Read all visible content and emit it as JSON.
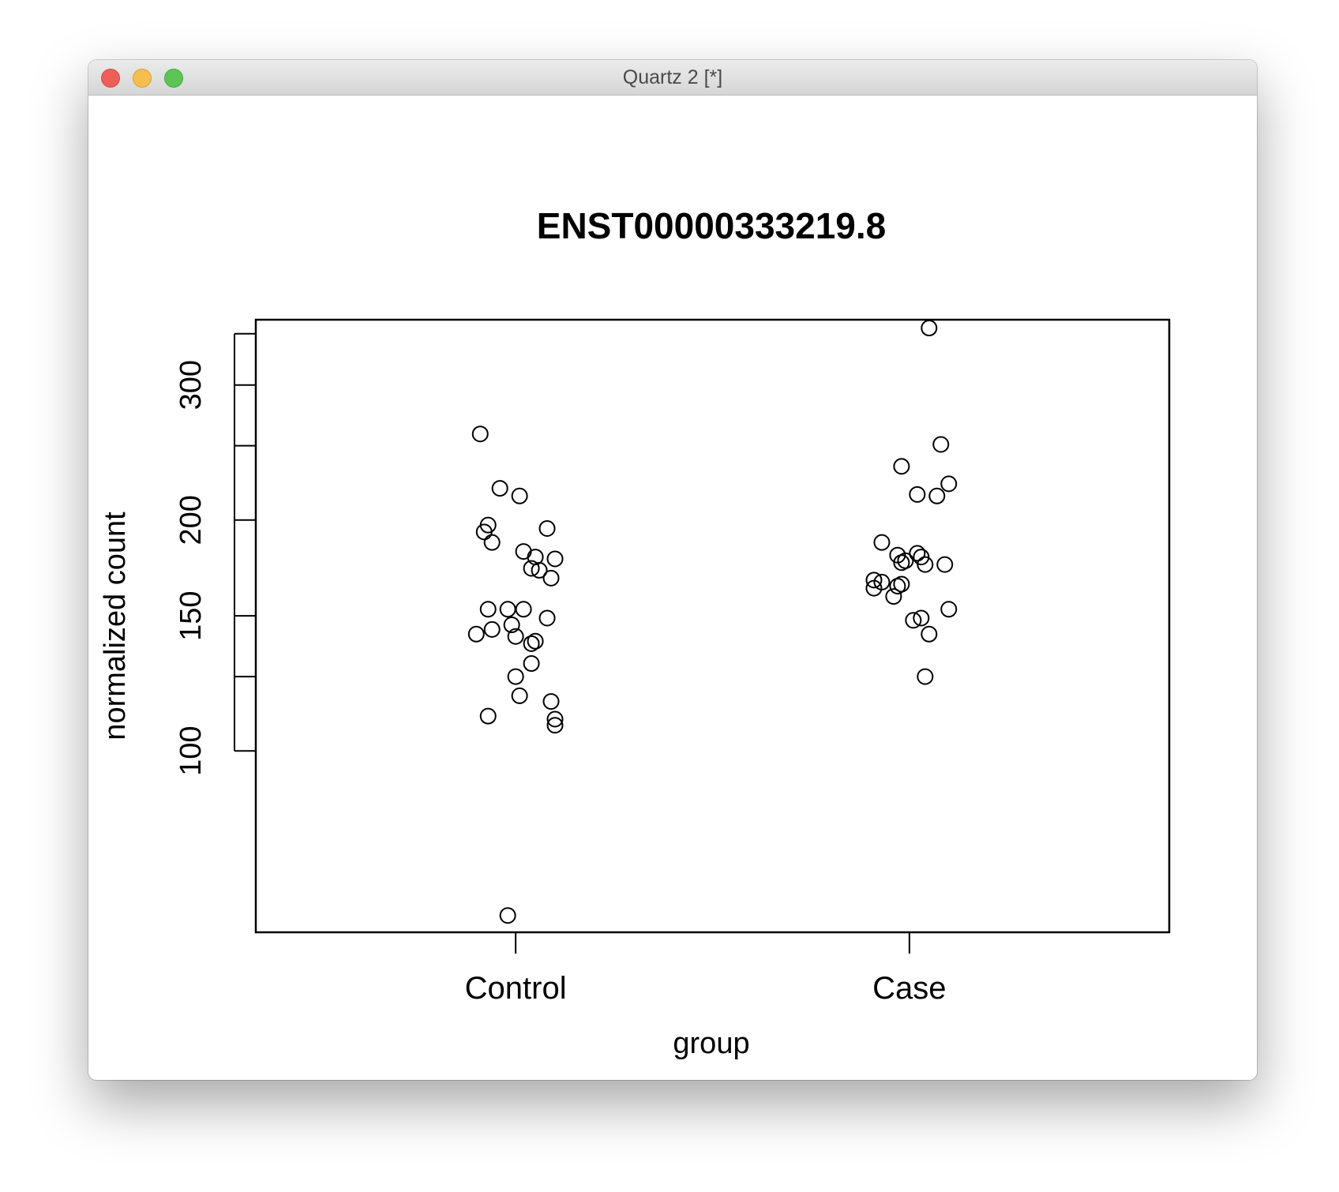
{
  "window": {
    "title": "Quartz 2 [*]",
    "controls": [
      "close",
      "minimize",
      "zoom"
    ]
  },
  "chart_data": {
    "type": "scatter",
    "title": "ENST00000333219.8",
    "xlabel": "group",
    "ylabel": "normalized count",
    "categories": [
      "Control",
      "Case"
    ],
    "y_scale": "log",
    "ylim": [
      58,
      365
    ],
    "yticks": [
      {
        "value": 100,
        "label": "100"
      },
      {
        "value": 125,
        "label": ""
      },
      {
        "value": 150,
        "label": "150"
      },
      {
        "value": 200,
        "label": "200"
      },
      {
        "value": 250,
        "label": ""
      },
      {
        "value": 300,
        "label": "300"
      },
      {
        "value": 350,
        "label": ""
      }
    ],
    "grid": false,
    "legend": "none",
    "series": [
      {
        "category": "Control",
        "points": [
          {
            "jitter": -0.09,
            "y": 259
          },
          {
            "jitter": -0.04,
            "y": 220
          },
          {
            "jitter": 0.01,
            "y": 215
          },
          {
            "jitter": -0.07,
            "y": 197
          },
          {
            "jitter": -0.08,
            "y": 193
          },
          {
            "jitter": 0.08,
            "y": 195
          },
          {
            "jitter": -0.06,
            "y": 187
          },
          {
            "jitter": 0.02,
            "y": 182
          },
          {
            "jitter": 0.05,
            "y": 179
          },
          {
            "jitter": 0.1,
            "y": 178
          },
          {
            "jitter": 0.04,
            "y": 173
          },
          {
            "jitter": 0.06,
            "y": 172
          },
          {
            "jitter": 0.09,
            "y": 168
          },
          {
            "jitter": -0.07,
            "y": 153
          },
          {
            "jitter": -0.02,
            "y": 153
          },
          {
            "jitter": 0.02,
            "y": 153
          },
          {
            "jitter": 0.08,
            "y": 149
          },
          {
            "jitter": -0.01,
            "y": 146
          },
          {
            "jitter": -0.06,
            "y": 144
          },
          {
            "jitter": -0.1,
            "y": 142
          },
          {
            "jitter": 0.0,
            "y": 141
          },
          {
            "jitter": 0.05,
            "y": 139
          },
          {
            "jitter": 0.04,
            "y": 138
          },
          {
            "jitter": 0.04,
            "y": 130
          },
          {
            "jitter": 0.0,
            "y": 125
          },
          {
            "jitter": 0.01,
            "y": 118
          },
          {
            "jitter": 0.09,
            "y": 116
          },
          {
            "jitter": -0.07,
            "y": 111
          },
          {
            "jitter": 0.1,
            "y": 110
          },
          {
            "jitter": 0.1,
            "y": 108
          },
          {
            "jitter": -0.02,
            "y": 61
          }
        ]
      },
      {
        "category": "Case",
        "points": [
          {
            "jitter": 0.05,
            "y": 356
          },
          {
            "jitter": 0.08,
            "y": 251
          },
          {
            "jitter": -0.02,
            "y": 235
          },
          {
            "jitter": 0.1,
            "y": 223
          },
          {
            "jitter": 0.02,
            "y": 216
          },
          {
            "jitter": 0.07,
            "y": 215
          },
          {
            "jitter": -0.07,
            "y": 187
          },
          {
            "jitter": -0.03,
            "y": 180
          },
          {
            "jitter": 0.02,
            "y": 181
          },
          {
            "jitter": 0.03,
            "y": 179
          },
          {
            "jitter": -0.01,
            "y": 177
          },
          {
            "jitter": -0.02,
            "y": 176
          },
          {
            "jitter": 0.04,
            "y": 175
          },
          {
            "jitter": 0.09,
            "y": 175
          },
          {
            "jitter": -0.09,
            "y": 167
          },
          {
            "jitter": -0.07,
            "y": 166
          },
          {
            "jitter": -0.02,
            "y": 165
          },
          {
            "jitter": -0.03,
            "y": 164
          },
          {
            "jitter": -0.09,
            "y": 163
          },
          {
            "jitter": -0.04,
            "y": 159
          },
          {
            "jitter": 0.1,
            "y": 153
          },
          {
            "jitter": 0.03,
            "y": 149
          },
          {
            "jitter": 0.01,
            "y": 148
          },
          {
            "jitter": 0.05,
            "y": 142
          },
          {
            "jitter": 0.04,
            "y": 125
          }
        ]
      }
    ]
  }
}
